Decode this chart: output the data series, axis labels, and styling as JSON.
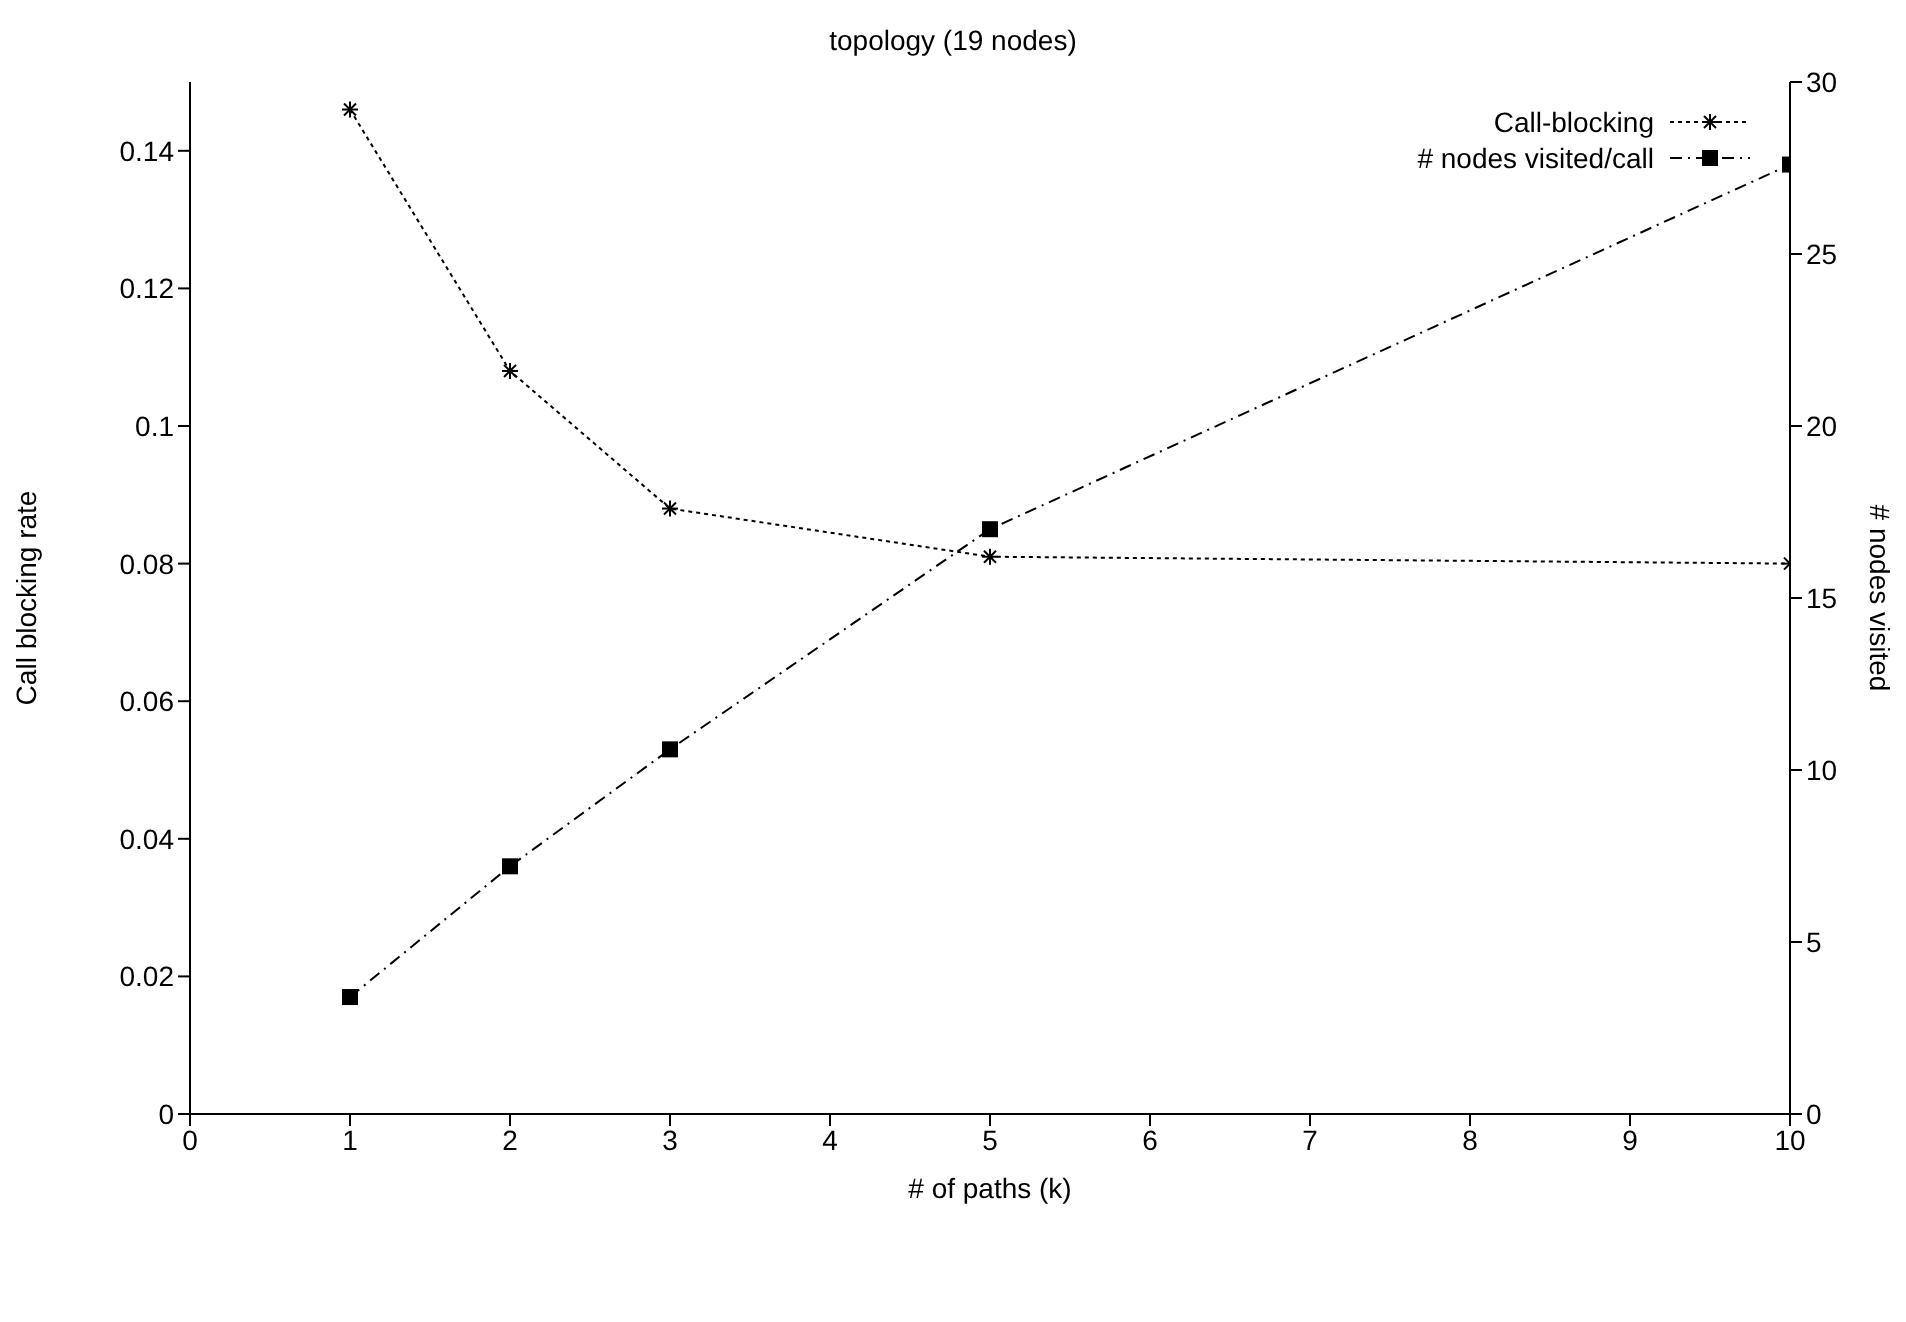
{
  "chart_data": {
    "type": "line",
    "title": "topology (19 nodes)",
    "xlabel": "# of paths (k)",
    "ylabel": "Call blocking rate",
    "y2label": "# nodes visited",
    "x": [
      1,
      2,
      3,
      5,
      10
    ],
    "series": [
      {
        "name": "Call-blocking",
        "color": "#000000",
        "values": [
          0.146,
          0.108,
          0.088,
          0.081,
          0.08
        ],
        "marker": "cross",
        "line_style": "dotted"
      },
      {
        "name": "# nodes visited/call",
        "color": "#000000",
        "values": [
          3.4,
          7.2,
          10.6,
          17.0,
          27.6
        ],
        "axis": "y2",
        "marker": "square",
        "line_style": "dashed"
      }
    ],
    "xlim": [
      0,
      10
    ],
    "xticks": [
      0,
      1,
      2,
      3,
      4,
      5,
      6,
      7,
      8,
      9,
      10
    ],
    "ylim": [
      0,
      0.15
    ],
    "yticks": [
      0,
      0.02,
      0.04,
      0.06,
      0.08,
      0.1,
      0.12,
      0.14
    ],
    "y2lim": [
      0,
      30
    ],
    "y2ticks": [
      0,
      5,
      10,
      15,
      20,
      25,
      30
    ],
    "grid": false,
    "legend": "top right"
  }
}
